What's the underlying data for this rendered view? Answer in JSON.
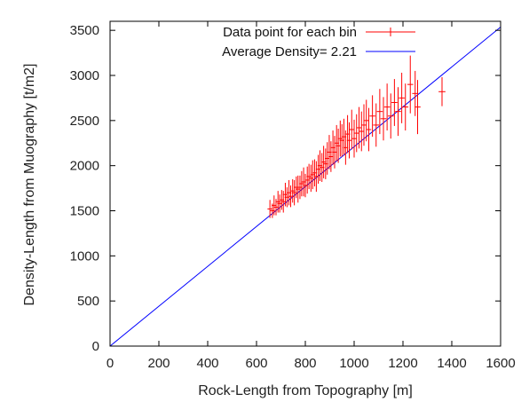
{
  "chart_data": {
    "type": "scatter",
    "title": "",
    "xlabel": "Rock-Length from Topography [m]",
    "ylabel": "Density-Length from Muography [t/m2]",
    "xlim": [
      0,
      1600
    ],
    "ylim": [
      0,
      3600
    ],
    "xticks": [
      "0",
      "200",
      "400",
      "600",
      "800",
      "1000",
      "1200",
      "1400",
      "1600"
    ],
    "yticks": [
      "0",
      "500",
      "1000",
      "1500",
      "2000",
      "2500",
      "3000",
      "3500"
    ],
    "grid": false,
    "legend_position": "top",
    "series": [
      {
        "name": "Data point for each bin",
        "kind": "points-with-errorbars",
        "color": "#ff0000",
        "x": [
          655,
          665,
          672,
          680,
          688,
          695,
          703,
          710,
          718,
          725,
          733,
          740,
          748,
          755,
          763,
          770,
          778,
          785,
          793,
          800,
          808,
          815,
          823,
          830,
          838,
          845,
          853,
          860,
          868,
          875,
          883,
          890,
          898,
          905,
          913,
          920,
          928,
          935,
          943,
          950,
          958,
          965,
          973,
          980,
          990,
          1000,
          1010,
          1020,
          1030,
          1040,
          1050,
          1060,
          1075,
          1090,
          1105,
          1120,
          1135,
          1150,
          1165,
          1180,
          1195,
          1210,
          1230,
          1250,
          1260,
          1360
        ],
        "y": [
          1520,
          1500,
          1560,
          1540,
          1600,
          1580,
          1620,
          1600,
          1680,
          1650,
          1700,
          1660,
          1720,
          1700,
          1760,
          1740,
          1760,
          1800,
          1820,
          1780,
          1840,
          1880,
          1860,
          1900,
          1920,
          1880,
          1960,
          2000,
          1980,
          2040,
          2020,
          2080,
          2150,
          2100,
          2200,
          2150,
          2250,
          2220,
          2300,
          2280,
          2320,
          2200,
          2350,
          2280,
          2400,
          2300,
          2360,
          2420,
          2380,
          2450,
          2500,
          2400,
          2550,
          2450,
          2600,
          2520,
          2650,
          2550,
          2700,
          2600,
          2750,
          2650,
          2900,
          2800,
          2650,
          2820
        ],
        "yerr": [
          100,
          80,
          110,
          90,
          120,
          100,
          110,
          120,
          130,
          110,
          140,
          120,
          130,
          140,
          120,
          150,
          130,
          140,
          160,
          130,
          150,
          140,
          150,
          160,
          150,
          170,
          160,
          170,
          160,
          180,
          170,
          180,
          190,
          170,
          190,
          180,
          200,
          190,
          200,
          180,
          200,
          190,
          210,
          200,
          220,
          210,
          210,
          230,
          220,
          230,
          230,
          240,
          230,
          240,
          250,
          240,
          260,
          250,
          260,
          270,
          280,
          260,
          320,
          250,
          300,
          160
        ],
        "xerr": [
          10,
          10,
          10,
          10,
          10,
          10,
          10,
          10,
          10,
          10,
          10,
          10,
          10,
          10,
          10,
          10,
          10,
          10,
          10,
          10,
          10,
          10,
          10,
          10,
          10,
          10,
          10,
          10,
          10,
          10,
          10,
          10,
          10,
          10,
          10,
          10,
          10,
          10,
          10,
          10,
          10,
          10,
          10,
          10,
          10,
          10,
          10,
          10,
          10,
          10,
          10,
          10,
          12,
          12,
          12,
          12,
          12,
          12,
          12,
          12,
          12,
          12,
          12,
          12,
          12,
          14
        ]
      },
      {
        "name": "Average Density= 2.21",
        "kind": "line",
        "color": "#0000ff",
        "x": [
          0,
          1600
        ],
        "y": [
          0,
          3536
        ]
      }
    ]
  }
}
